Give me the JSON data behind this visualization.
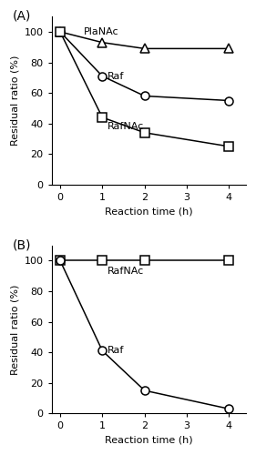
{
  "panel_A": {
    "label": "(A)",
    "series": [
      {
        "name": "PlaNAc",
        "x": [
          0,
          1,
          2,
          4
        ],
        "y": [
          100,
          93,
          89,
          89
        ],
        "marker": "^",
        "ann_x": 0.55,
        "ann_y": 100,
        "ann_va": "center",
        "ann_ha": "left"
      },
      {
        "name": "Raf",
        "x": [
          0,
          1,
          2,
          4
        ],
        "y": [
          100,
          71,
          58,
          55
        ],
        "marker": "o",
        "ann_x": 1.12,
        "ann_y": 71,
        "ann_va": "center",
        "ann_ha": "left"
      },
      {
        "name": "RafNAc",
        "x": [
          0,
          1,
          2,
          4
        ],
        "y": [
          100,
          44,
          34,
          25
        ],
        "marker": "s",
        "ann_x": 1.12,
        "ann_y": 38,
        "ann_va": "center",
        "ann_ha": "left"
      }
    ],
    "xlabel": "Reaction time (h)",
    "ylabel": "Residual ratio (%)",
    "xlim": [
      -0.2,
      4.4
    ],
    "ylim": [
      0,
      110
    ],
    "yticks": [
      0,
      20,
      40,
      60,
      80,
      100
    ],
    "xticks": [
      0,
      1,
      2,
      3,
      4
    ]
  },
  "panel_B": {
    "label": "(B)",
    "series": [
      {
        "name": "RafNAc",
        "x": [
          0,
          1,
          2,
          4
        ],
        "y": [
          100,
          100,
          100,
          100
        ],
        "marker": "s",
        "ann_x": 1.12,
        "ann_y": 93,
        "ann_va": "center",
        "ann_ha": "left"
      },
      {
        "name": "Raf",
        "x": [
          0,
          1,
          2,
          4
        ],
        "y": [
          100,
          41,
          15,
          3
        ],
        "marker": "o",
        "ann_x": 1.12,
        "ann_y": 41,
        "ann_va": "center",
        "ann_ha": "left"
      }
    ],
    "xlabel": "Reaction time (h)",
    "ylabel": "Residual ratio (%)",
    "xlim": [
      -0.2,
      4.4
    ],
    "ylim": [
      0,
      110
    ],
    "yticks": [
      0,
      20,
      40,
      60,
      80,
      100
    ],
    "xticks": [
      0,
      1,
      2,
      3,
      4
    ]
  },
  "line_color": "#000000",
  "marker_size": 6.5,
  "marker_facecolor": "white",
  "marker_edgecolor": "#000000",
  "marker_edgewidth": 1.1,
  "linewidth": 1.1,
  "fontsize_label": 8,
  "fontsize_annotation": 8,
  "fontsize_panel_label": 10,
  "fontsize_tick": 8
}
